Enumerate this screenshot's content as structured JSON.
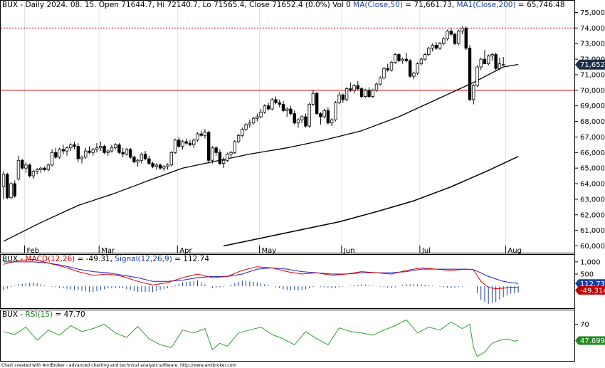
{
  "header": {
    "main_prefix": "BUX - Daily 2024. 08. 15. Open 71644.7, Hi 72140.7, Lo 71565.4, Close 71652.4 (0.0%) Vol 0 ",
    "ma50_label": "MA(Close,50)",
    "ma50_value": " = 71,661.73, ",
    "ma200_label": "MA1(Close,200)",
    "ma200_value": " = 65,746.48",
    "macd_prefix": "BUX - ",
    "macd_label": "MACD(12,26)",
    "macd_value": " = -49.31, ",
    "signal_label": "Signal(12,26,9)",
    "signal_value": " = 112.74",
    "rsi_prefix": "BUX - ",
    "rsi_label": "RSI(15)",
    "rsi_value": " = 47.70"
  },
  "footer": "Chart created with AmiBroker - advanced charting and technical analysis software. http://www.amibroker.com",
  "colors": {
    "candle": "#000000",
    "ma50": "#000000",
    "ma200": "#000000",
    "hline_solid": "#cc0000",
    "hline_dotted": "#cc0000",
    "macd": "#e00000",
    "signal": "#2020c0",
    "rsi": "#2e9e2e",
    "last_price_tag": "#1c2e4a",
    "macd_tag": "#c00000",
    "signal_tag": "#1a3ea8",
    "rsi_tag": "#1f8a1f"
  },
  "chart_data": [
    {
      "type": "candlestick",
      "title": "BUX - Daily 2024. 08. 15.",
      "months": [
        "Feb",
        "Mar",
        "Apr",
        "May",
        "Jun",
        "Jul",
        "Aug"
      ],
      "month_start_index": [
        6,
        26,
        47,
        69,
        91,
        112,
        135
      ],
      "y_ticks": [
        "60,000",
        "61,000",
        "62,000",
        "63,000",
        "64,000",
        "65,000",
        "66,000",
        "67,000",
        "68,000",
        "69,000",
        "70,000",
        "71,000",
        "72,000",
        "73,000",
        "74,000",
        "75,000"
      ],
      "ylim": [
        60000,
        75000
      ],
      "last_price_label": "71,652.4",
      "horizontal_lines": [
        {
          "value": 70000,
          "style": "solid"
        },
        {
          "value": 74000,
          "style": "dotted"
        }
      ],
      "ohlc": [
        [
          63800,
          64800,
          63000,
          64600
        ],
        [
          64600,
          64700,
          63000,
          63100
        ],
        [
          63100,
          64100,
          63000,
          64000
        ],
        [
          64000,
          64200,
          63100,
          63200
        ],
        [
          64300,
          65800,
          64200,
          65500
        ],
        [
          65500,
          65600,
          64900,
          65000
        ],
        [
          65000,
          65400,
          64700,
          65200
        ],
        [
          65200,
          65300,
          64400,
          64500
        ],
        [
          64500,
          64900,
          64300,
          64800
        ],
        [
          64800,
          65000,
          64600,
          64900
        ],
        [
          64900,
          65100,
          64700,
          65000
        ],
        [
          65000,
          65100,
          64800,
          64900
        ],
        [
          64900,
          65300,
          64800,
          65200
        ],
        [
          65200,
          66200,
          65100,
          66000
        ],
        [
          66000,
          66300,
          65600,
          65700
        ],
        [
          65700,
          66300,
          65600,
          66200
        ],
        [
          66200,
          66500,
          65900,
          66100
        ],
        [
          66100,
          66400,
          65800,
          66300
        ],
        [
          66300,
          66600,
          66100,
          66500
        ],
        [
          66500,
          66700,
          66200,
          66400
        ],
        [
          66400,
          66600,
          65400,
          65600
        ],
        [
          65600,
          65800,
          65300,
          65700
        ],
        [
          65700,
          66300,
          65600,
          66100
        ],
        [
          66100,
          66400,
          65900,
          66000
        ],
        [
          66000,
          66300,
          65800,
          66200
        ],
        [
          66200,
          66600,
          66000,
          66300
        ],
        [
          66300,
          66700,
          66100,
          66400
        ],
        [
          66400,
          66500,
          65900,
          66000
        ],
        [
          66000,
          66200,
          65800,
          66100
        ],
        [
          66100,
          66500,
          66000,
          66300
        ],
        [
          66300,
          66600,
          66200,
          66500
        ],
        [
          66500,
          66600,
          65900,
          66000
        ],
        [
          66000,
          66300,
          65700,
          65900
        ],
        [
          65900,
          66300,
          65800,
          66200
        ],
        [
          66200,
          66300,
          65600,
          65700
        ],
        [
          65700,
          65800,
          65300,
          65400
        ],
        [
          65400,
          65600,
          65100,
          65500
        ],
        [
          65500,
          66000,
          65300,
          65900
        ],
        [
          65900,
          66100,
          65500,
          65600
        ],
        [
          65600,
          65800,
          65200,
          65300
        ],
        [
          65300,
          65400,
          65000,
          65100
        ],
        [
          65100,
          65300,
          64900,
          65200
        ],
        [
          65200,
          65300,
          64900,
          65000
        ],
        [
          65000,
          65200,
          64800,
          65100
        ],
        [
          65100,
          65300,
          64900,
          65200
        ],
        [
          65200,
          66100,
          65100,
          66000
        ],
        [
          66000,
          66900,
          65900,
          66800
        ],
        [
          66800,
          67000,
          66300,
          66400
        ],
        [
          66400,
          66800,
          66200,
          66700
        ],
        [
          66700,
          66900,
          66500,
          66600
        ],
        [
          66600,
          66800,
          66400,
          66500
        ],
        [
          66500,
          66900,
          66300,
          66800
        ],
        [
          66800,
          67300,
          66700,
          67200
        ],
        [
          67200,
          67400,
          67000,
          67100
        ],
        [
          67100,
          67500,
          66900,
          67300
        ],
        [
          67300,
          67400,
          65300,
          65500
        ],
        [
          65500,
          66400,
          65300,
          66300
        ],
        [
          66300,
          66400,
          65800,
          66000
        ],
        [
          66000,
          66200,
          65200,
          65300
        ],
        [
          65300,
          65700,
          65000,
          65500
        ],
        [
          65500,
          66000,
          65400,
          65900
        ],
        [
          65900,
          66100,
          65700,
          66000
        ],
        [
          66000,
          66800,
          65900,
          66700
        ],
        [
          66700,
          67200,
          66600,
          67100
        ],
        [
          67100,
          67600,
          67000,
          67500
        ],
        [
          67500,
          67900,
          67400,
          67800
        ],
        [
          67800,
          68100,
          67600,
          67900
        ],
        [
          67900,
          68300,
          67800,
          68200
        ],
        [
          68200,
          68500,
          68000,
          68300
        ],
        [
          68300,
          68800,
          68200,
          68600
        ],
        [
          68600,
          69100,
          68500,
          69000
        ],
        [
          69000,
          69200,
          68700,
          68800
        ],
        [
          68800,
          69500,
          68700,
          69400
        ],
        [
          69400,
          69600,
          69100,
          69200
        ],
        [
          69200,
          69400,
          68900,
          69100
        ],
        [
          69100,
          69300,
          68600,
          68700
        ],
        [
          68700,
          68900,
          68300,
          68800
        ],
        [
          68800,
          69000,
          68400,
          68500
        ],
        [
          68500,
          68700,
          67800,
          67900
        ],
        [
          67900,
          68200,
          67600,
          68100
        ],
        [
          68100,
          68400,
          67900,
          68300
        ],
        [
          68300,
          68500,
          67600,
          67700
        ],
        [
          67700,
          69200,
          67600,
          69100
        ],
        [
          69100,
          70000,
          69000,
          69800
        ],
        [
          69800,
          69900,
          68400,
          68500
        ],
        [
          68500,
          68600,
          67800,
          68300
        ],
        [
          68300,
          68800,
          68200,
          68700
        ],
        [
          68700,
          68900,
          67800,
          67900
        ],
        [
          67900,
          68200,
          67700,
          68100
        ],
        [
          68100,
          69300,
          68000,
          69200
        ],
        [
          69200,
          69900,
          69100,
          69700
        ],
        [
          69700,
          69800,
          69200,
          69400
        ],
        [
          69400,
          70200,
          69300,
          70100
        ],
        [
          70100,
          70500,
          69900,
          70000
        ],
        [
          70000,
          70400,
          69800,
          70300
        ],
        [
          70300,
          70600,
          70000,
          70100
        ],
        [
          70100,
          70200,
          69500,
          69600
        ],
        [
          69600,
          70100,
          69500,
          70000
        ],
        [
          70000,
          70200,
          69500,
          69600
        ],
        [
          69600,
          70100,
          69500,
          70000
        ],
        [
          70000,
          70500,
          69900,
          70400
        ],
        [
          70400,
          70900,
          70300,
          70800
        ],
        [
          70800,
          71500,
          70700,
          71400
        ],
        [
          71400,
          71700,
          71200,
          71300
        ],
        [
          71300,
          71900,
          71200,
          71800
        ],
        [
          71800,
          72400,
          71700,
          72300
        ],
        [
          72300,
          72400,
          71800,
          71900
        ],
        [
          71900,
          72100,
          71700,
          72000
        ],
        [
          72000,
          72400,
          71800,
          71900
        ],
        [
          71900,
          72000,
          70800,
          70900
        ],
        [
          70900,
          71200,
          70700,
          71100
        ],
        [
          71100,
          71800,
          71000,
          71700
        ],
        [
          71700,
          72100,
          71600,
          72000
        ],
        [
          72000,
          72400,
          71900,
          72300
        ],
        [
          72300,
          72800,
          72200,
          72700
        ],
        [
          72700,
          73000,
          72500,
          72900
        ],
        [
          72900,
          73100,
          72600,
          72700
        ],
        [
          72700,
          73100,
          72600,
          73000
        ],
        [
          73000,
          73400,
          72900,
          73300
        ],
        [
          73300,
          73900,
          73200,
          73800
        ],
        [
          73800,
          74000,
          73500,
          73600
        ],
        [
          73600,
          73700,
          72900,
          73000
        ],
        [
          73000,
          73900,
          72900,
          73800
        ],
        [
          73800,
          74100,
          73600,
          74000
        ],
        [
          74000,
          74100,
          72600,
          72700
        ],
        [
          72700,
          72900,
          69300,
          69400
        ],
        [
          69400,
          70400,
          69100,
          70300
        ],
        [
          70300,
          71600,
          70200,
          71500
        ],
        [
          71500,
          72100,
          71300,
          72000
        ],
        [
          72000,
          72600,
          71800,
          71700
        ],
        [
          71700,
          72300,
          71600,
          72200
        ],
        [
          72200,
          72400,
          71900,
          72300
        ],
        [
          72300,
          72400,
          71300,
          71400
        ],
        [
          71400,
          72100,
          71300,
          71700
        ],
        [
          71644.7,
          72140.7,
          71565.4,
          71652.4
        ]
      ],
      "ma50": {
        "label": "MA(Close,50)",
        "x": [
          0,
          10,
          20,
          30,
          40,
          48,
          56,
          66,
          76,
          86,
          96,
          106,
          116,
          126,
          134,
          138
        ],
        "y": [
          60300,
          61500,
          62600,
          63400,
          64300,
          65000,
          65400,
          65900,
          66300,
          66800,
          67400,
          68300,
          69400,
          70500,
          71500,
          71661.73
        ]
      },
      "ma200": {
        "label": "MA1(Close,200)",
        "x": [
          59,
          70,
          80,
          90,
          100,
          110,
          120,
          130,
          138
        ],
        "y": [
          60000,
          60550,
          61050,
          61550,
          62200,
          62900,
          63800,
          64850,
          65746.48
        ]
      }
    },
    {
      "type": "line",
      "title": "BUX - MACD(12,26)",
      "y_ticks": [
        "500",
        "1,000"
      ],
      "ylim": [
        -900,
        1200
      ],
      "series": [
        {
          "name": "MACD(12,26)",
          "x": [
            0,
            4,
            8,
            12,
            16,
            20,
            24,
            28,
            32,
            36,
            40,
            44,
            48,
            52,
            56,
            60,
            64,
            68,
            72,
            76,
            80,
            84,
            88,
            92,
            96,
            100,
            104,
            108,
            112,
            116,
            120,
            124,
            126,
            128,
            130,
            132,
            134,
            136,
            138
          ],
          "y": [
            900,
            1050,
            1100,
            950,
            800,
            600,
            450,
            500,
            400,
            200,
            50,
            150,
            350,
            500,
            350,
            400,
            650,
            800,
            750,
            600,
            500,
            550,
            450,
            500,
            600,
            550,
            500,
            650,
            750,
            700,
            650,
            700,
            680,
            200,
            -50,
            -100,
            -80,
            -40,
            -49.31
          ]
        },
        {
          "name": "Signal(12,26,9)",
          "x": [
            0,
            4,
            8,
            12,
            16,
            20,
            24,
            28,
            32,
            36,
            40,
            44,
            48,
            52,
            56,
            60,
            64,
            68,
            72,
            76,
            80,
            84,
            88,
            92,
            96,
            100,
            104,
            108,
            112,
            116,
            120,
            124,
            126,
            128,
            130,
            132,
            134,
            136,
            138
          ],
          "y": [
            1000,
            1000,
            1000,
            950,
            850,
            700,
            600,
            550,
            450,
            350,
            200,
            200,
            250,
            350,
            400,
            400,
            500,
            700,
            750,
            700,
            600,
            550,
            500,
            500,
            550,
            550,
            550,
            600,
            700,
            700,
            700,
            700,
            680,
            550,
            400,
            300,
            200,
            150,
            112.74
          ]
        }
      ],
      "tags": [
        "112.739",
        "-49.3144"
      ]
    },
    {
      "type": "line",
      "title": "BUX - RSI(15)",
      "y_ticks": [
        "70"
      ],
      "ylim": [
        20,
        85
      ],
      "series": [
        {
          "name": "RSI(15)",
          "x": [
            0,
            3,
            6,
            9,
            12,
            15,
            18,
            21,
            24,
            27,
            30,
            33,
            36,
            39,
            42,
            45,
            48,
            51,
            54,
            56,
            58,
            60,
            63,
            66,
            69,
            72,
            75,
            78,
            81,
            84,
            87,
            90,
            93,
            96,
            99,
            102,
            105,
            108,
            111,
            114,
            117,
            120,
            123,
            125,
            126,
            127,
            129,
            131,
            133,
            135,
            137,
            138
          ],
          "y": [
            60,
            56,
            66,
            48,
            62,
            55,
            68,
            60,
            64,
            70,
            58,
            52,
            67,
            50,
            42,
            38,
            62,
            58,
            64,
            35,
            44,
            40,
            58,
            62,
            66,
            56,
            50,
            42,
            60,
            50,
            42,
            65,
            60,
            58,
            55,
            62,
            68,
            76,
            58,
            66,
            62,
            73,
            64,
            70,
            38,
            26,
            32,
            44,
            48,
            50,
            47,
            47.7
          ]
        }
      ],
      "tag": "47.6994"
    }
  ]
}
